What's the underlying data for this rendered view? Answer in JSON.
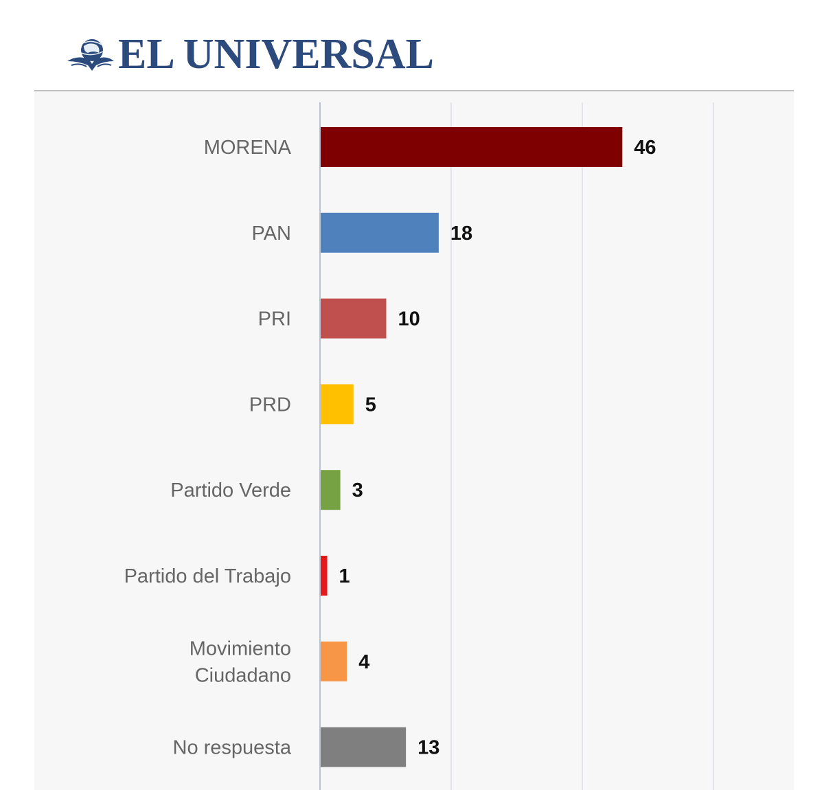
{
  "header": {
    "brand": "EL UNIVERSAL",
    "brand_color": "#2c4a7c",
    "logo_icon": "globe-eagle-icon"
  },
  "chart_data": {
    "type": "bar",
    "orientation": "horizontal",
    "title": "",
    "xlabel": "",
    "ylabel": "",
    "categories": [
      [
        "MORENA"
      ],
      [
        "PAN"
      ],
      [
        "PRI"
      ],
      [
        "PRD"
      ],
      [
        "Partido Verde"
      ],
      [
        "Partido del Trabajo"
      ],
      [
        "Movimiento",
        "Ciudadano"
      ],
      [
        "No respuesta"
      ]
    ],
    "values": [
      46,
      18,
      10,
      5,
      3,
      1,
      4,
      13
    ],
    "colors": [
      "#7f0000",
      "#4f81bd",
      "#c0504d",
      "#ffc000",
      "#77a243",
      "#e3191c",
      "#f79646",
      "#7f7f7f"
    ],
    "xlim": [
      0,
      60
    ],
    "gridlines_x": [
      0,
      20,
      40,
      60
    ],
    "grid": true,
    "legend": "none",
    "data_labels": true
  }
}
